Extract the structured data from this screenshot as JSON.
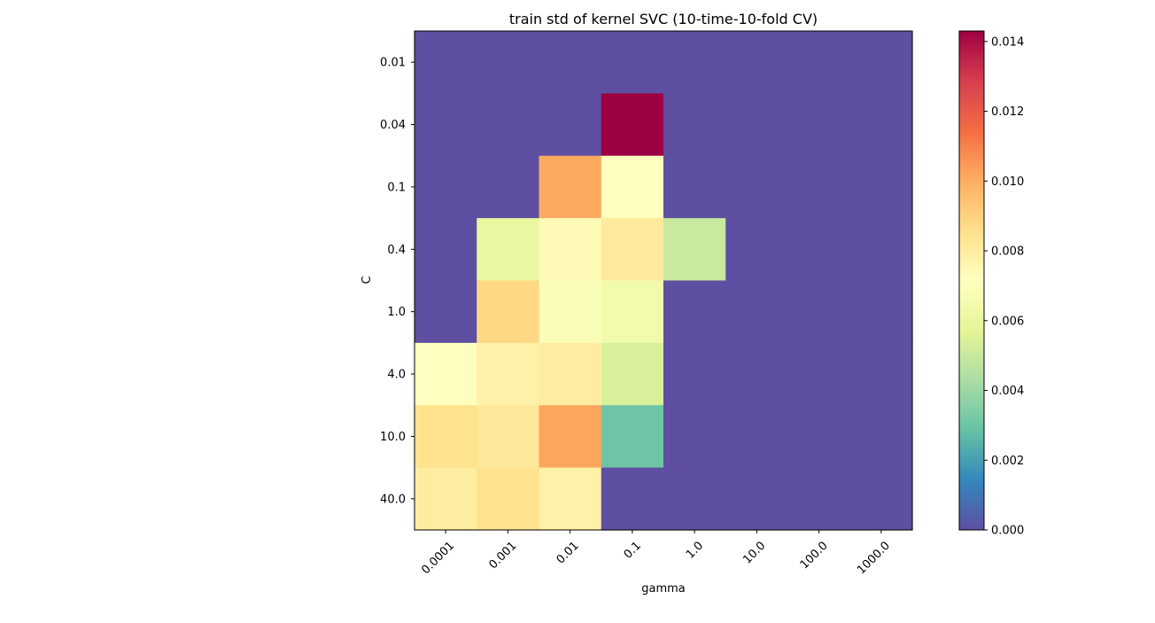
{
  "chart_data": {
    "type": "heatmap",
    "title": "train std of kernel SVC (10-time-10-fold CV)",
    "xlabel": "gamma",
    "ylabel": "C",
    "x_categories": [
      "0.0001",
      "0.001",
      "0.01",
      "0.1",
      "1.0",
      "10.0",
      "100.0",
      "1000.0"
    ],
    "y_categories": [
      "0.01",
      "0.04",
      "0.1",
      "0.4",
      "1.0",
      "4.0",
      "10.0",
      "40.0"
    ],
    "values": [
      [
        0,
        0,
        0,
        0,
        0,
        0,
        0,
        0
      ],
      [
        0,
        0,
        0,
        0.0143,
        0,
        0,
        0,
        0
      ],
      [
        0,
        0,
        0.0101,
        0.0071,
        0,
        0,
        0,
        0
      ],
      [
        0,
        0.006,
        0.0074,
        0.0081,
        0.005,
        0,
        0,
        0
      ],
      [
        0,
        0.0088,
        0.0068,
        0.0064,
        0,
        0,
        0,
        0
      ],
      [
        0.0071,
        0.0078,
        0.008,
        0.0054,
        0,
        0,
        0,
        0
      ],
      [
        0.0085,
        0.0082,
        0.0102,
        0.003,
        0,
        0,
        0,
        0
      ],
      [
        0.008,
        0.0085,
        0.0078,
        0,
        0,
        0,
        0,
        0
      ]
    ],
    "colormap": "Spectral_r",
    "vmin": 0.0,
    "vmax": 0.0143,
    "colorbar_ticks": [
      "0.000",
      "0.002",
      "0.004",
      "0.006",
      "0.008",
      "0.010",
      "0.012",
      "0.014"
    ],
    "grid": false
  }
}
